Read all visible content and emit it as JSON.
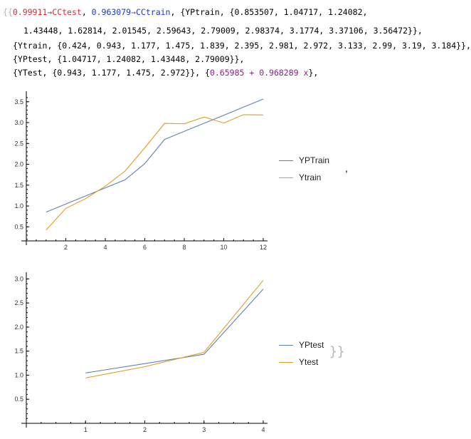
{
  "output": {
    "open_brackets": "{{",
    "cctest_value": "0.99911",
    "arrow": "→",
    "cctest_label": "CCtest",
    "sep": ", ",
    "cctrain_value": "0.963079",
    "cctrain_label": "CCtrain",
    "line1_rest": ", {YPtrain, {0.853507, 1.04717, 1.24082,",
    "line2": "1.43448, 1.62814, 2.01545, 2.59643, 2.79009, 2.98374, 3.1774, 3.37106, 3.56472}},",
    "line3": "{Ytrain, {0.424, 0.943, 1.177, 1.475, 1.839, 2.395, 2.981, 2.972, 3.133, 2.99, 3.19, 3.184}},",
    "line4": "{YPtest, {1.04717, 1.24082, 1.43448, 2.79009}},",
    "line5_pre": "{YTest, {0.943, 1.177, 1.475, 2.972}}, {",
    "fit_expr": "0.65985 + 0.968289 x",
    "line5_post": "},",
    "comma_after_plot": ",",
    "closing_brackets": "}}"
  },
  "colors": {
    "series_blue": "#5e81b5",
    "series_orange": "#e19c24",
    "axis": "#000000"
  },
  "chart_data": [
    {
      "type": "line",
      "title": "",
      "xlabel": "",
      "ylabel": "",
      "xlim": [
        0,
        12
      ],
      "ylim": [
        0.3,
        3.65
      ],
      "xticks": [
        2,
        4,
        6,
        8,
        10,
        12
      ],
      "yticks": [
        0.5,
        1.0,
        1.5,
        2.0,
        2.5,
        3.0,
        3.5
      ],
      "xtick_labels": [
        "2",
        "4",
        "6",
        "8",
        "10",
        "12"
      ],
      "ytick_labels": [
        "0.5",
        "1.0",
        "1.5",
        "2.0",
        "2.5",
        "3.0",
        "3.5"
      ],
      "legend_position": "right",
      "series": [
        {
          "name": "YPTrain",
          "color": "#5e81b5",
          "x": [
            1,
            2,
            3,
            4,
            5,
            6,
            7,
            8,
            9,
            10,
            11,
            12
          ],
          "y": [
            0.853507,
            1.04717,
            1.24082,
            1.43448,
            1.62814,
            2.01545,
            2.59643,
            2.79009,
            2.98374,
            3.1774,
            3.37106,
            3.56472
          ]
        },
        {
          "name": "Ytrain",
          "color": "#e19c24",
          "x": [
            1,
            2,
            3,
            4,
            5,
            6,
            7,
            8,
            9,
            10,
            11,
            12
          ],
          "y": [
            0.424,
            0.943,
            1.177,
            1.475,
            1.839,
            2.395,
            2.981,
            2.972,
            3.133,
            2.99,
            3.19,
            3.184
          ]
        }
      ]
    },
    {
      "type": "line",
      "title": "",
      "xlabel": "",
      "ylabel": "",
      "xlim": [
        0,
        4
      ],
      "ylim": [
        0.0,
        3.05
      ],
      "xticks": [
        1,
        2,
        3,
        4
      ],
      "yticks": [
        0.5,
        1.0,
        1.5,
        2.0,
        2.5,
        3.0
      ],
      "xtick_labels": [
        "1",
        "2",
        "3",
        "4"
      ],
      "ytick_labels": [
        "0.5",
        "1.0",
        "1.5",
        "2.0",
        "2.5",
        "3.0"
      ],
      "legend_position": "right",
      "series": [
        {
          "name": "YPtest",
          "color": "#5e81b5",
          "x": [
            1,
            2,
            3,
            4
          ],
          "y": [
            1.04717,
            1.24082,
            1.43448,
            2.79009
          ]
        },
        {
          "name": "Ytest",
          "color": "#e19c24",
          "x": [
            1,
            2,
            3,
            4
          ],
          "y": [
            0.943,
            1.177,
            1.475,
            2.972
          ]
        }
      ]
    }
  ]
}
